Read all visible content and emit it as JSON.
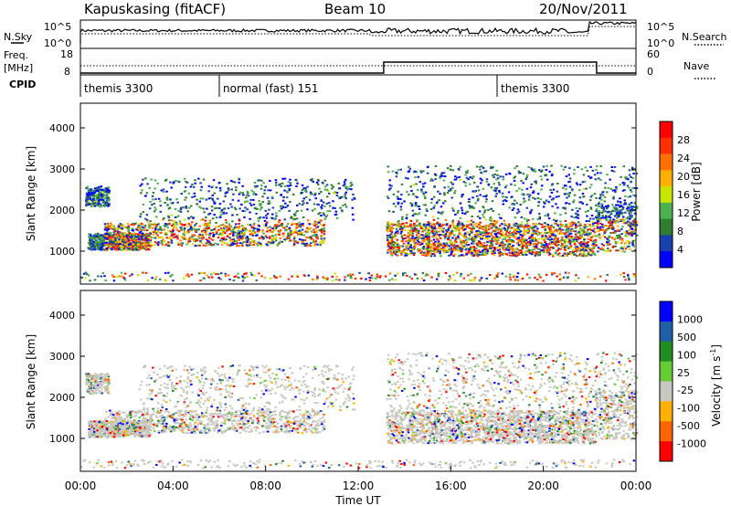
{
  "header": {
    "station": "Kapuskasing (fitACF)",
    "beam": "Beam 10",
    "date": "20/Nov/2011"
  },
  "left_labels": {
    "nsky": "N.Sky",
    "freq": "Freq.",
    "freq_unit": "[MHz]",
    "cpid": "CPID"
  },
  "right_labels": {
    "nsearch": "N.Search",
    "nave": "Nave"
  },
  "cpid_segments": [
    {
      "label": "themis 3300",
      "start_hour": 0
    },
    {
      "label": "normal (fast) 151",
      "start_hour": 6
    },
    {
      "label": "themis 3300",
      "start_hour": 18
    }
  ],
  "colors": {
    "power_scale": [
      "#0000ff",
      "#1a3fae",
      "#2e7d32",
      "#4caf50",
      "#c8e600",
      "#ffb000",
      "#ff7000",
      "#ff3000",
      "#ff0000"
    ],
    "velocity_scale": [
      "#ff0000",
      "#ff6600",
      "#ffb000",
      "#c8c8c0",
      "#66cc33",
      "#228b22",
      "#1f5fa8",
      "#0000ff"
    ]
  },
  "chart_data": [
    {
      "type": "line",
      "name": "noise-panel",
      "left_ticks": [
        "10^5",
        "10^0"
      ],
      "right_ticks": [
        "10^5",
        "10^0"
      ],
      "series": [
        {
          "name": "N.Sky",
          "style": "solid"
        },
        {
          "name": "N.Search",
          "style": "dotted"
        }
      ]
    },
    {
      "type": "line",
      "name": "frequency-panel",
      "left_ticks": [
        "18",
        "8"
      ],
      "right_ticks": [
        "60",
        "0"
      ],
      "series": [
        {
          "name": "Freq.",
          "style": "solid",
          "x": [
            0,
            13.1,
            13.1,
            22.3,
            22.3,
            24
          ],
          "y": [
            8,
            8,
            14,
            14,
            8,
            8
          ]
        },
        {
          "name": "Nave",
          "style": "dotted"
        }
      ]
    },
    {
      "type": "heatmap",
      "name": "power-panel",
      "ylabel": "Slant Range [km]",
      "yticks": [
        "1000",
        "2000",
        "3000",
        "4000"
      ],
      "ylim": [
        200,
        4600
      ],
      "colorbar": {
        "label": "Power [dB]",
        "ticks": [
          "4",
          "8",
          "12",
          "16",
          "20",
          "24",
          "28"
        ],
        "range": [
          0,
          30
        ]
      }
    },
    {
      "type": "heatmap",
      "name": "velocity-panel",
      "ylabel": "Slant Range [km]",
      "yticks": [
        "1000",
        "2000",
        "3000",
        "4000"
      ],
      "ylim": [
        200,
        4600
      ],
      "colorbar": {
        "label": "Velocity [m s^-1]",
        "ticks": [
          "1000",
          "500",
          "100",
          "25",
          "-25",
          "-100",
          "-500",
          "-1000"
        ]
      }
    }
  ],
  "xaxis": {
    "label": "Time UT",
    "ticks": [
      "00:00",
      "04:00",
      "08:00",
      "12:00",
      "16:00",
      "20:00",
      "00:00"
    ],
    "range_hours": [
      0,
      24
    ]
  }
}
